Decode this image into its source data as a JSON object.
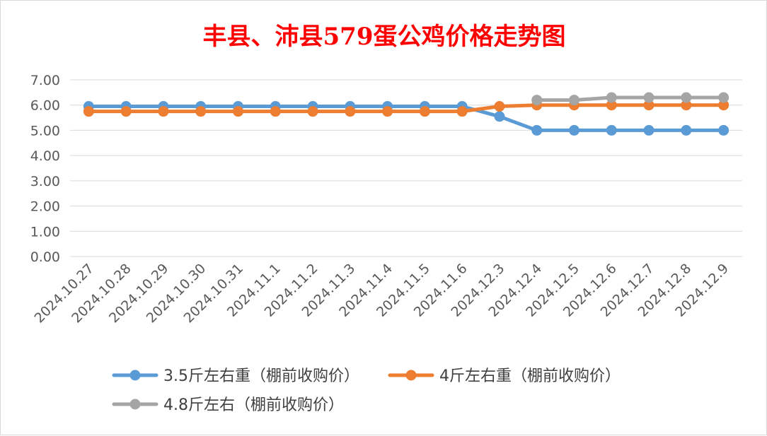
{
  "chart_data": {
    "type": "line",
    "title": "丰县、沛县579蛋公鸡价格走势图",
    "title_color": "#ff0000",
    "categories": [
      "2024.10.27",
      "2024.10.28",
      "2024.10.29",
      "2024.10.30",
      "2024.10.31",
      "2024.11.1",
      "2024.11.2",
      "2024.11.3",
      "2024.11.4",
      "2024.11.5",
      "2024.11.6",
      "2024.12.3",
      "2024.12.4",
      "2024.12.5",
      "2024.12.6",
      "2024.12.7",
      "2024.12.8",
      "2024.12.9"
    ],
    "series": [
      {
        "name": "3.5斤左右重（棚前收购价）",
        "color": "#5b9bd5",
        "values": [
          5.95,
          5.95,
          5.95,
          5.95,
          5.95,
          5.95,
          5.95,
          5.95,
          5.95,
          5.95,
          5.95,
          5.55,
          5.0,
          5.0,
          5.0,
          5.0,
          5.0,
          5.0
        ]
      },
      {
        "name": "4斤左右重（棚前收购价）",
        "color": "#ed7d31",
        "values": [
          5.75,
          5.75,
          5.75,
          5.75,
          5.75,
          5.75,
          5.75,
          5.75,
          5.75,
          5.75,
          5.75,
          5.95,
          6.0,
          6.0,
          6.0,
          6.0,
          6.0,
          6.0
        ]
      },
      {
        "name": "4.8斤左右（棚前收购价）",
        "color": "#a5a5a5",
        "values": [
          null,
          null,
          null,
          null,
          null,
          null,
          null,
          null,
          null,
          null,
          null,
          null,
          6.2,
          6.2,
          6.3,
          6.3,
          6.3,
          6.3
        ]
      }
    ],
    "y_ticks": [
      "0.00",
      "1.00",
      "2.00",
      "3.00",
      "4.00",
      "5.00",
      "6.00",
      "7.00"
    ],
    "ylim": [
      0,
      7
    ],
    "xlabel": "",
    "ylabel": "",
    "grid": true,
    "legend_position": "bottom"
  }
}
